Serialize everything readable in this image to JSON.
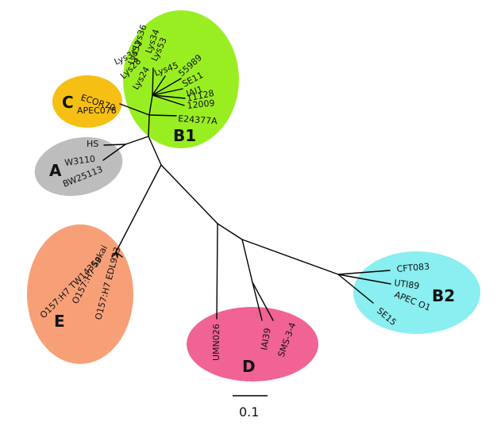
{
  "tree": {
    "scale_bar_label": "0.1",
    "clades": [
      {
        "name": "B1",
        "color": "#99ee22",
        "leaves": [
          "Lys36",
          "Lys34",
          "Lys52",
          "Lys53",
          "Lys35",
          "Lys28",
          "Lys24",
          "Lys45",
          "55989",
          "SE11",
          "IAI1",
          "11128",
          "12009",
          "E24377A"
        ]
      },
      {
        "name": "C",
        "color": "#f5bf14",
        "leaves": [
          "ECOR70",
          "APEC078"
        ]
      },
      {
        "name": "A",
        "color": "#bdbdbd",
        "leaves": [
          "HS",
          "W3110",
          "BW25113"
        ]
      },
      {
        "name": "E",
        "color": "#f7a078",
        "leaves": [
          "O157:H7 TW14359",
          "O157:H7 Sakai",
          "O157:H7 EDL933"
        ]
      },
      {
        "name": "D",
        "color": "#f06394",
        "leaves": [
          "UMN026",
          "IAI39",
          "SMS-3-4"
        ]
      },
      {
        "name": "B2",
        "color": "#8beef0",
        "leaves": [
          "CFT083",
          "UTI89",
          "APEC O1",
          "SE15"
        ]
      }
    ]
  }
}
